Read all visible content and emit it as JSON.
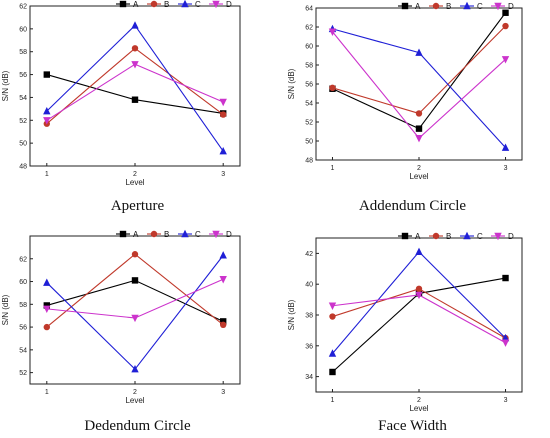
{
  "panels": [
    {
      "caption": "Aperture",
      "chart_data": {
        "type": "line",
        "x": [
          1,
          2,
          3
        ],
        "xlabel": "Level",
        "ylabel": "S/N (dB)",
        "ylim": [
          48,
          62
        ],
        "yticks": [
          48,
          50,
          52,
          54,
          56,
          58,
          60,
          62
        ],
        "xticks": [
          1,
          2,
          3
        ],
        "legend_position": "top-right",
        "series": [
          {
            "name": "A",
            "values": [
              56.0,
              53.8,
              52.6
            ]
          },
          {
            "name": "B",
            "values": [
              51.7,
              58.3,
              52.5
            ]
          },
          {
            "name": "C",
            "values": [
              52.8,
              60.3,
              49.3
            ]
          },
          {
            "name": "D",
            "values": [
              52.0,
              56.9,
              53.6
            ]
          }
        ]
      }
    },
    {
      "caption": "Addendum Circle",
      "chart_data": {
        "type": "line",
        "x": [
          1,
          2,
          3
        ],
        "xlabel": "Level",
        "ylabel": "S/N (dB)",
        "ylim": [
          48,
          64
        ],
        "yticks": [
          48,
          50,
          52,
          54,
          56,
          58,
          60,
          62,
          64
        ],
        "xticks": [
          1,
          2,
          3
        ],
        "legend_position": "top-right",
        "series": [
          {
            "name": "A",
            "values": [
              55.5,
              51.3,
              63.5
            ]
          },
          {
            "name": "B",
            "values": [
              55.6,
              52.9,
              62.1
            ]
          },
          {
            "name": "C",
            "values": [
              61.8,
              59.3,
              49.3
            ]
          },
          {
            "name": "D",
            "values": [
              61.5,
              50.3,
              58.6
            ]
          }
        ]
      }
    },
    {
      "caption": "Dedendum Circle",
      "chart_data": {
        "type": "line",
        "x": [
          1,
          2,
          3
        ],
        "xlabel": "Level",
        "ylabel": "S/N (dB)",
        "ylim": [
          51,
          64
        ],
        "yticks": [
          52,
          54,
          56,
          58,
          60,
          62
        ],
        "xticks": [
          1,
          2,
          3
        ],
        "legend_position": "top-right",
        "series": [
          {
            "name": "A",
            "values": [
              57.9,
              60.1,
              56.5
            ]
          },
          {
            "name": "B",
            "values": [
              56.0,
              62.4,
              56.2
            ]
          },
          {
            "name": "C",
            "values": [
              59.9,
              52.3,
              62.3
            ]
          },
          {
            "name": "D",
            "values": [
              57.6,
              56.8,
              60.2
            ]
          }
        ]
      }
    },
    {
      "caption": "Face Width",
      "chart_data": {
        "type": "line",
        "x": [
          1,
          2,
          3
        ],
        "xlabel": "Level",
        "ylabel": "S/N (dB)",
        "ylim": [
          33,
          43
        ],
        "yticks": [
          34,
          36,
          38,
          40,
          42
        ],
        "xticks": [
          1,
          2,
          3
        ],
        "legend_position": "top-right",
        "series": [
          {
            "name": "A",
            "values": [
              34.3,
              39.4,
              40.4
            ]
          },
          {
            "name": "B",
            "values": [
              37.9,
              39.7,
              36.5
            ]
          },
          {
            "name": "C",
            "values": [
              35.5,
              42.1,
              36.5
            ]
          },
          {
            "name": "D",
            "values": [
              38.6,
              39.3,
              36.2
            ]
          }
        ]
      }
    }
  ],
  "series_style": {
    "A": {
      "color": "#000000",
      "marker": "square"
    },
    "B": {
      "color": "#c0392b",
      "marker": "circle"
    },
    "C": {
      "color": "#1f1fd6",
      "marker": "triangle-up"
    },
    "D": {
      "color": "#cc33cc",
      "marker": "triangle-down"
    }
  }
}
